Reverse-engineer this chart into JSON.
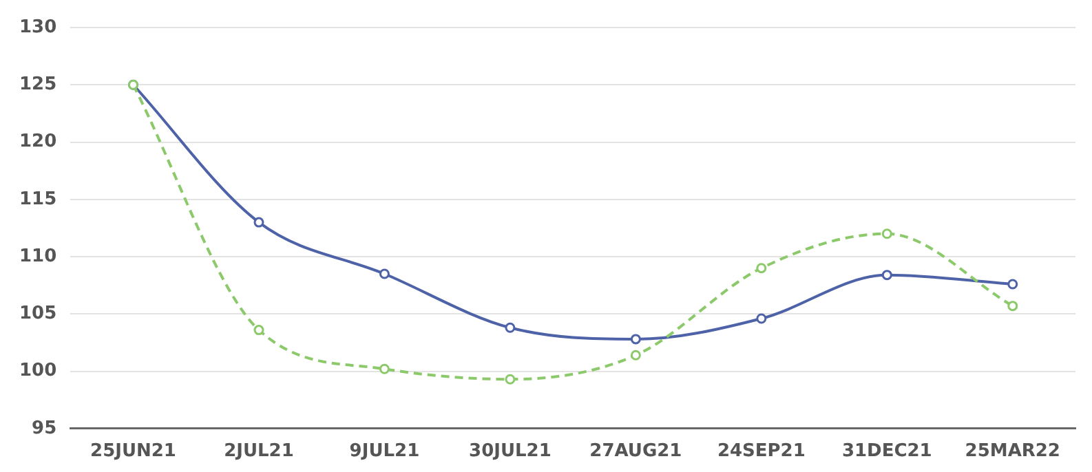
{
  "chart_data": {
    "type": "line",
    "categories": [
      "25JUN21",
      "2JUL21",
      "9JUL21",
      "30JUL21",
      "27AUG21",
      "24SEP21",
      "31DEC21",
      "25MAR22"
    ],
    "series": [
      {
        "color": "#4e62a8",
        "values": [
          125,
          113,
          108.5,
          103.8,
          102.8,
          104.6,
          108.4,
          107.6
        ],
        "line_style": "solid"
      },
      {
        "color": "#8cc96a",
        "values": [
          125,
          103.6,
          100.2,
          99.3,
          101.4,
          109,
          112,
          105.7
        ],
        "line_style": "dashed"
      }
    ],
    "ylim": [
      95,
      130
    ],
    "yticks": [
      95,
      100,
      105,
      110,
      115,
      120,
      125,
      130
    ],
    "grid": "y",
    "marker": "circle",
    "legend": false
  }
}
